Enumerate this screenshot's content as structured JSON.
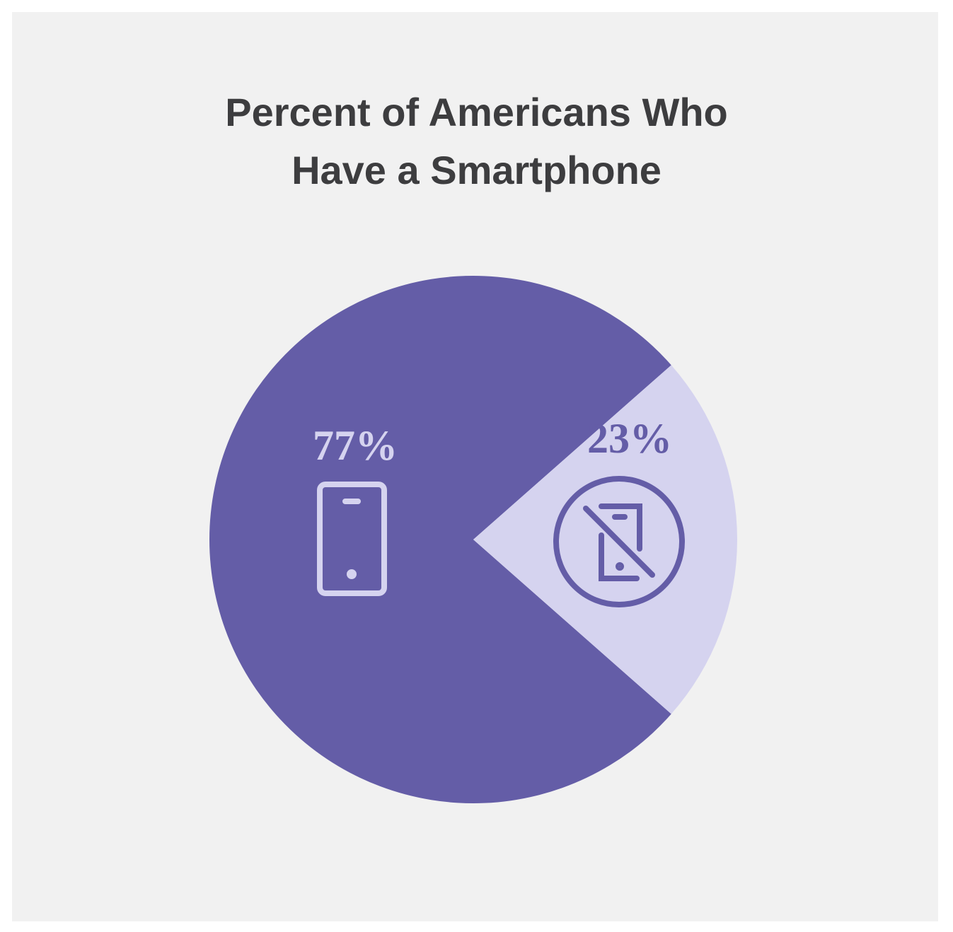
{
  "chart_data": {
    "type": "pie",
    "title_lines": [
      "Percent of Americans Who",
      "Have a Smartphone"
    ],
    "slices": [
      {
        "value": 77,
        "label": "77%",
        "color": "#645da7",
        "label_color": "#d5d3ef",
        "icon": "smartphone-icon"
      },
      {
        "value": 23,
        "label": "23%",
        "color": "#d5d3ef",
        "label_color": "#645da7",
        "icon": "no-smartphone-icon"
      }
    ]
  },
  "colors": {
    "background": "#f1f1f1",
    "title": "#3d3d3f"
  }
}
